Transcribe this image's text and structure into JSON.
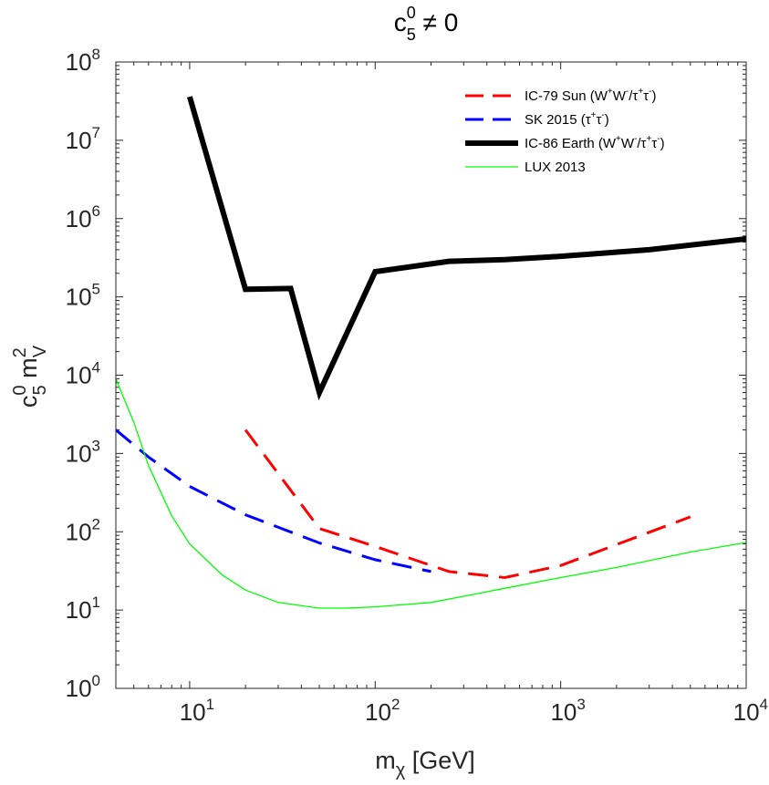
{
  "chart_data": {
    "type": "line",
    "title": "c50 ≠ 0",
    "title_parts": {
      "base": "c",
      "sup": "0",
      "sub": "5",
      "rest": " ≠ 0"
    },
    "xlabel": "mχ [GeV]",
    "xlabel_parts": {
      "base": "m",
      "sub": "χ",
      "rest": " [GeV]"
    },
    "ylabel": "c50 mV2",
    "ylabel_parts": {
      "c": "c",
      "c_sup": "0",
      "c_sub": "5",
      "m": " m",
      "m_sup": "2",
      "m_sub": "V"
    },
    "xscale": "log",
    "yscale": "log",
    "xlim": [
      4,
      10000
    ],
    "ylim": [
      1,
      100000000
    ],
    "x_ticks": [
      {
        "value": 10,
        "base": "10",
        "exp": "1"
      },
      {
        "value": 100,
        "base": "10",
        "exp": "2"
      },
      {
        "value": 1000,
        "base": "10",
        "exp": "3"
      },
      {
        "value": 10000,
        "base": "10",
        "exp": "4"
      }
    ],
    "y_ticks": [
      {
        "value": 1,
        "base": "10",
        "exp": "0"
      },
      {
        "value": 10,
        "base": "10",
        "exp": "1"
      },
      {
        "value": 100,
        "base": "10",
        "exp": "2"
      },
      {
        "value": 1000,
        "base": "10",
        "exp": "3"
      },
      {
        "value": 10000,
        "base": "10",
        "exp": "4"
      },
      {
        "value": 100000,
        "base": "10",
        "exp": "5"
      },
      {
        "value": 1000000,
        "base": "10",
        "exp": "6"
      },
      {
        "value": 10000000,
        "base": "10",
        "exp": "7"
      },
      {
        "value": 100000000,
        "base": "10",
        "exp": "8"
      }
    ],
    "legend_position": "top-right",
    "series": [
      {
        "name": "IC-79 Sun (W+W-/τ+τ-)",
        "label_parts": [
          {
            "t": "IC-79 Sun (W"
          },
          {
            "t": "+",
            "sup": true
          },
          {
            "t": "W"
          },
          {
            "t": "-",
            "sup": true
          },
          {
            "t": "/τ"
          },
          {
            "t": "+",
            "sup": true
          },
          {
            "t": "τ"
          },
          {
            "t": "-",
            "sup": true
          },
          {
            "t": ")"
          }
        ],
        "color": "#ff0000",
        "style": "dashed",
        "width": "thick",
        "x": [
          20,
          50,
          100,
          250,
          500,
          1000,
          5000
        ],
        "y": [
          2000,
          110,
          65,
          31,
          26,
          37,
          155
        ]
      },
      {
        "name": "SK 2015 (τ+τ-)",
        "label_parts": [
          {
            "t": "SK 2015 (τ"
          },
          {
            "t": "+",
            "sup": true
          },
          {
            "t": "τ"
          },
          {
            "t": "-",
            "sup": true
          },
          {
            "t": ")"
          }
        ],
        "color": "#0000ff",
        "style": "dashed",
        "width": "thick",
        "x": [
          4,
          6,
          10,
          20,
          50,
          100,
          200
        ],
        "y": [
          2000,
          900,
          380,
          165,
          72,
          44,
          31
        ]
      },
      {
        "name": "IC-86 Earth (W+W-/τ+τ-)",
        "label_parts": [
          {
            "t": "IC-86 Earth (W"
          },
          {
            "t": "+",
            "sup": true
          },
          {
            "t": "W"
          },
          {
            "t": "-",
            "sup": true
          },
          {
            "t": "/τ"
          },
          {
            "t": "+",
            "sup": true
          },
          {
            "t": "τ"
          },
          {
            "t": "-",
            "sup": true
          },
          {
            "t": ")"
          }
        ],
        "color": "#000000",
        "style": "solid",
        "width": "heavy",
        "x": [
          10,
          20,
          35,
          50,
          100,
          250,
          500,
          1000,
          3000,
          10000
        ],
        "y": [
          36000000,
          125000,
          128000,
          6000,
          210000,
          285000,
          300000,
          330000,
          400000,
          550000
        ]
      },
      {
        "name": "LUX 2013",
        "label_parts": [
          {
            "t": "LUX 2013"
          }
        ],
        "color": "#00ff00",
        "style": "solid",
        "width": "thin",
        "x": [
          4,
          5,
          6,
          8,
          10,
          15,
          20,
          30,
          50,
          70,
          100,
          200,
          300,
          500,
          1000,
          2000,
          5000,
          10000
        ],
        "y": [
          9000,
          2500,
          700,
          160,
          70,
          28,
          18,
          12.5,
          10.6,
          10.6,
          11,
          12.5,
          15,
          19,
          26,
          35,
          55,
          73
        ]
      }
    ]
  }
}
